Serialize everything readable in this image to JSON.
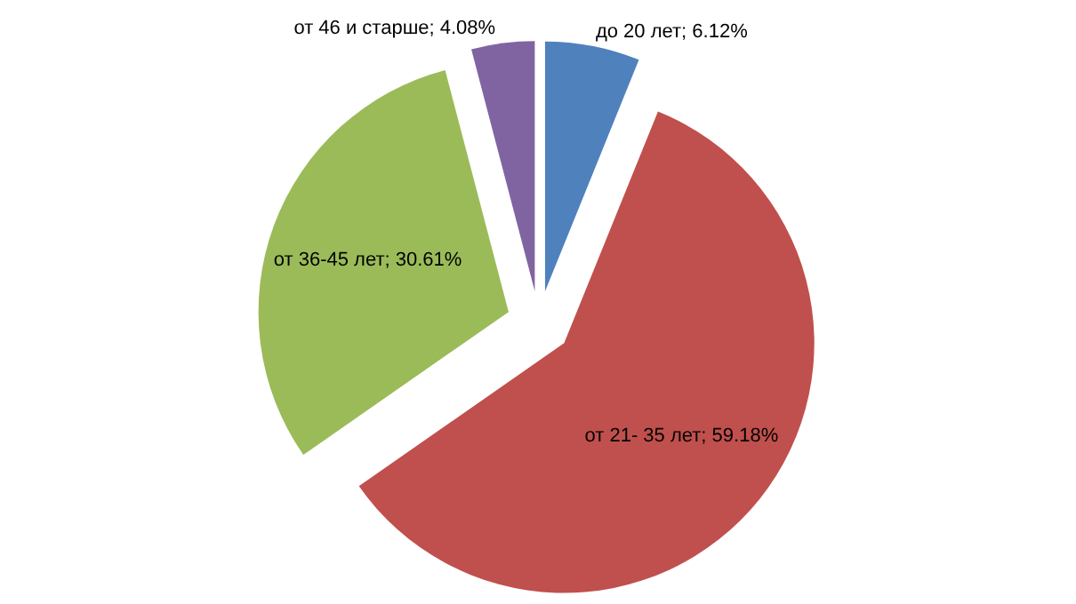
{
  "chart_data": {
    "type": "pie",
    "categories": [
      "до 20 лет",
      "от 21- 35 лет",
      "от 36-45 лет",
      "от 46  и старше"
    ],
    "values": [
      6.12,
      59.18,
      30.61,
      4.08
    ],
    "colors": [
      "#4f81bd",
      "#c0504d",
      "#9bbb59",
      "#8064a2"
    ],
    "value_labels": [
      "6.12%",
      "59.18%",
      "30.61%",
      "4.08%"
    ]
  }
}
